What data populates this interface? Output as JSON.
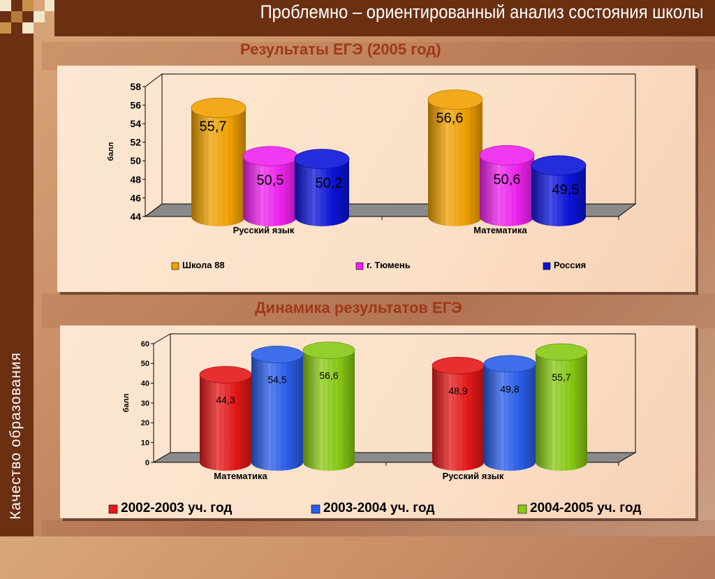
{
  "header": {
    "title": "Проблемно – ориентированный анализ состояния школы"
  },
  "sidebar": {
    "label": "Качество образования"
  },
  "chart1_title": "Результаты ЕГЭ (2005 год)",
  "chart2_title": "Динамика результатов ЕГЭ",
  "colors": {
    "brand_dark": "#6b2f12",
    "title_red": "#a03818",
    "orange": "#f0a000",
    "magenta": "#ee22ee",
    "blue1": "#0c14d8",
    "red": "#e41818",
    "blue2": "#2a5ee8",
    "green": "#88c814"
  },
  "chart_data": [
    {
      "type": "bar",
      "title": "Результаты ЕГЭ (2005 год)",
      "ylabel": "балл",
      "xlabel": "",
      "categories": [
        "Русский язык",
        "Математика"
      ],
      "ylim": [
        44,
        58
      ],
      "yticks": [
        "44",
        "46",
        "48",
        "50",
        "52",
        "54",
        "56",
        "58"
      ],
      "grid": false,
      "legend_position": "bottom",
      "series": [
        {
          "name": "Школа 88",
          "values": [
            55.7,
            56.6
          ],
          "labels": [
            "55,7",
            "56,6"
          ],
          "color": "#f0a000"
        },
        {
          "name": "г. Тюмень",
          "values": [
            50.5,
            50.6
          ],
          "labels": [
            "50,5",
            "50,6"
          ],
          "color": "#ee22ee"
        },
        {
          "name": "Россия",
          "values": [
            50.2,
            49.5
          ],
          "labels": [
            "50,2",
            "49,5"
          ],
          "color": "#0c14d8"
        }
      ]
    },
    {
      "type": "bar",
      "title": "Динамика результатов ЕГЭ",
      "ylabel": "балл",
      "xlabel": "",
      "categories": [
        "Математика",
        "Русский язык"
      ],
      "ylim": [
        0,
        60
      ],
      "yticks": [
        "0",
        "10",
        "20",
        "30",
        "40",
        "50",
        "60"
      ],
      "grid": false,
      "legend_position": "bottom",
      "series": [
        {
          "name": "2002-2003 уч. год",
          "values": [
            44.3,
            48.9
          ],
          "labels": [
            "44,3",
            "48,9"
          ],
          "color": "#e41818"
        },
        {
          "name": "2003-2004 уч. год",
          "values": [
            54.5,
            49.8
          ],
          "labels": [
            "54,5",
            "49,8"
          ],
          "color": "#2a5ee8"
        },
        {
          "name": "2004-2005 уч. год",
          "values": [
            56.6,
            55.7
          ],
          "labels": [
            "56,6",
            "55,7"
          ],
          "color": "#88c814"
        }
      ]
    }
  ]
}
